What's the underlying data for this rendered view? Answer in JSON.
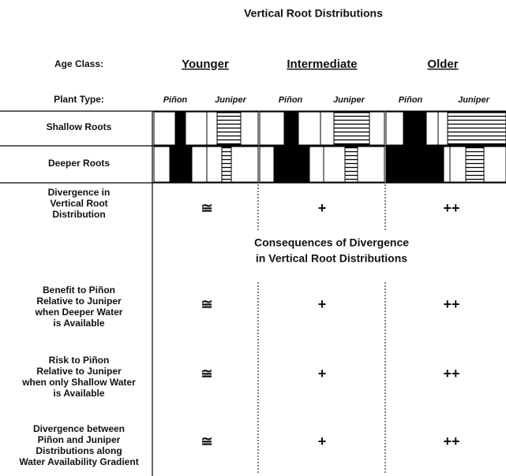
{
  "title": "Vertical Root Distributions",
  "age_class_label": "Age Class:",
  "age_classes": [
    "Younger",
    "Intermediate",
    "Older"
  ],
  "plant_type_label": "Plant Type:",
  "plant_types": [
    "Piñon",
    "Juniper"
  ],
  "root_rows": [
    "Shallow Roots",
    "Deeper Roots"
  ],
  "divergence": {
    "lines": [
      "Divergence in",
      "Vertical Root",
      "Distribution"
    ],
    "values": [
      "≅",
      "+",
      "++"
    ]
  },
  "consequences_title": [
    "Consequences of Divergence",
    "in Vertical Root Distributions"
  ],
  "consequences": [
    {
      "lines": [
        "Benefit to Piñon",
        "Relative to Juniper",
        "when Deeper Water",
        "is Available"
      ],
      "values": [
        "≅",
        "+",
        "++"
      ]
    },
    {
      "lines": [
        "Risk to Piñon",
        "Relative to Juniper",
        "when only Shallow Water",
        "is Available"
      ],
      "values": [
        "≅",
        "+",
        "++"
      ]
    },
    {
      "lines": [
        "Divergence between",
        "Piñon and Juniper",
        "Distributions  along",
        "Water Availability Gradient"
      ],
      "values": [
        "≅",
        "+",
        "++"
      ]
    }
  ]
}
